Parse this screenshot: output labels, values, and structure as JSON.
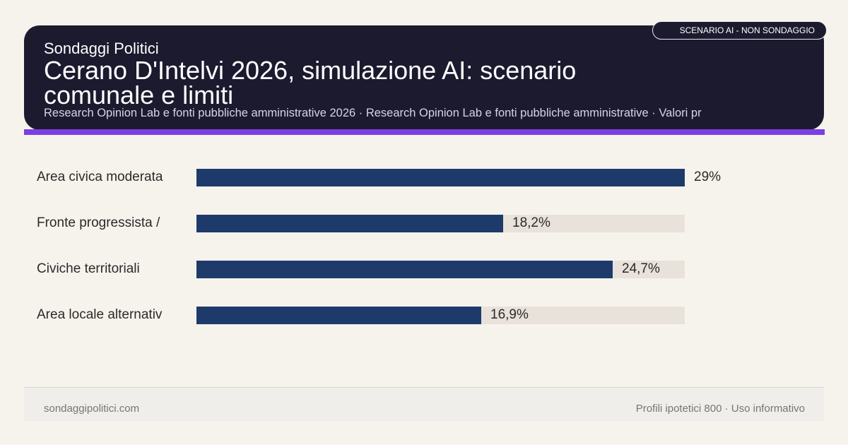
{
  "header": {
    "site_name": "Sondaggi Politici",
    "title": "Cerano D'Intelvi 2026, simulazione AI: scenario comunale e limiti",
    "subtitle": "Research Opinion Lab e fonti pubbliche amministrative 2026 · Research Opinion Lab e fonti pubbliche amministrative · Valori pr",
    "badge": "SCENARIO AI - NON SONDAGGIO"
  },
  "colors": {
    "header_bg": "#1c1a2e",
    "accent": "#7b3fe4",
    "bar": "#1d3a6b",
    "track": "#e8e2da",
    "page_bg": "#f6f3ec"
  },
  "chart_data": {
    "type": "bar",
    "orientation": "horizontal",
    "categories": [
      "Area civica moderata",
      "Fronte progressista /",
      "Civiche territoriali",
      "Area locale alternativ"
    ],
    "values": [
      29,
      18.2,
      24.7,
      16.9
    ],
    "value_labels": [
      "29%",
      "18,2%",
      "24,7%",
      "16,9%"
    ],
    "xlim": [
      0,
      29
    ],
    "title": "",
    "xlabel": "",
    "ylabel": "",
    "grid": false
  },
  "footer": {
    "site": "sondaggipolitici.com",
    "note": "Profili ipotetici 800 · Uso informativo"
  }
}
